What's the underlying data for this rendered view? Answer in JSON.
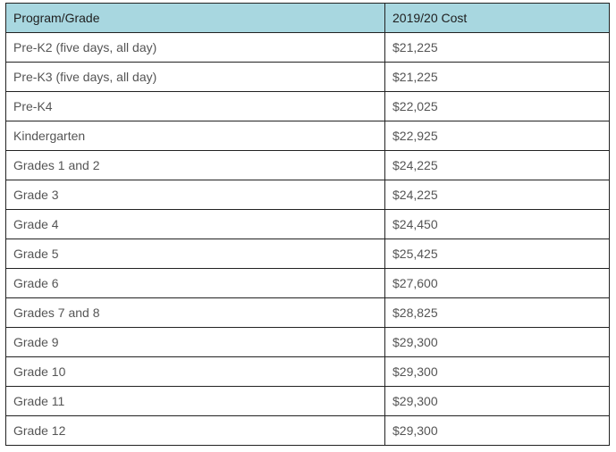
{
  "table": {
    "headers": {
      "program": "Program/Grade",
      "cost": "2019/20 Cost"
    },
    "rows": [
      {
        "program": "Pre-K2 (five days, all day)",
        "cost": "$21,225"
      },
      {
        "program": "Pre-K3 (five days, all day)",
        "cost": "$21,225"
      },
      {
        "program": "Pre-K4",
        "cost": "$22,025"
      },
      {
        "program": "Kindergarten",
        "cost": "$22,925"
      },
      {
        "program": "Grades 1 and 2",
        "cost": "$24,225"
      },
      {
        "program": "Grade 3",
        "cost": "$24,225"
      },
      {
        "program": "Grade 4",
        "cost": "$24,450"
      },
      {
        "program": "Grade 5",
        "cost": "$25,425"
      },
      {
        "program": "Grade 6",
        "cost": "$27,600"
      },
      {
        "program": "Grades 7 and 8",
        "cost": "$28,825"
      },
      {
        "program": "Grade 9",
        "cost": "$29,300"
      },
      {
        "program": "Grade 10",
        "cost": "$29,300"
      },
      {
        "program": "Grade 11",
        "cost": "$29,300"
      },
      {
        "program": "Grade 12",
        "cost": "$29,300"
      }
    ]
  },
  "colors": {
    "header_background": "#a8d7e0",
    "header_text": "#1e1e1e",
    "body_text": "#555555",
    "border": "#222222"
  }
}
